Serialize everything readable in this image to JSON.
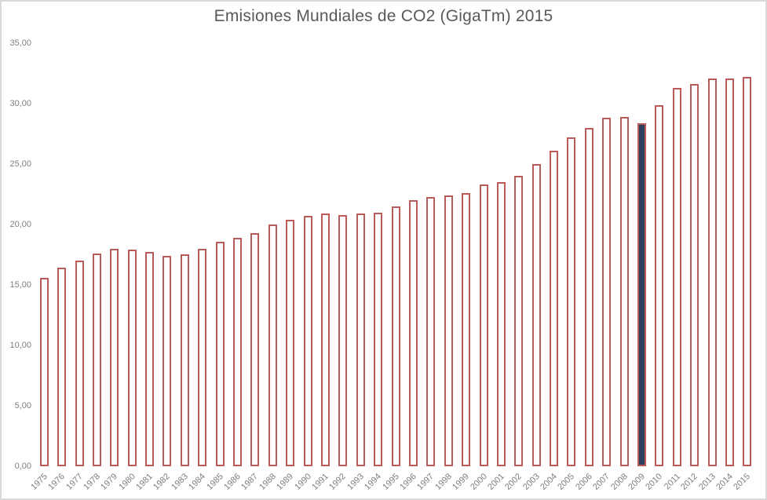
{
  "chart_data": {
    "type": "bar",
    "title": "Emisiones Mundiales de CO2 (GigaTm) 2015",
    "xlabel": "",
    "ylabel": "",
    "ylim": [
      0,
      35
    ],
    "grid": false,
    "legend": "none",
    "y_tick_labels": [
      "35,00",
      "30,00",
      "25,00",
      "20,00",
      "15,00",
      "10,00",
      "5,00",
      "0,00"
    ],
    "y_tick_values": [
      35,
      30,
      25,
      20,
      15,
      10,
      5,
      0
    ],
    "categories": [
      "1975",
      "1976",
      "1977",
      "1978",
      "1979",
      "1980",
      "1981",
      "1982",
      "1983",
      "1984",
      "1985",
      "1986",
      "1987",
      "1988",
      "1989",
      "1990",
      "1991",
      "1992",
      "1993",
      "1994",
      "1995",
      "1996",
      "1997",
      "1998",
      "1999",
      "2000",
      "2001",
      "2002",
      "2003",
      "2004",
      "2005",
      "2006",
      "2007",
      "2008",
      "2009",
      "2010",
      "2011",
      "2012",
      "2013",
      "2014",
      "2015"
    ],
    "values": [
      15.6,
      16.4,
      17.0,
      17.6,
      18.0,
      17.9,
      17.7,
      17.4,
      17.5,
      18.0,
      18.6,
      18.9,
      19.3,
      20.0,
      20.4,
      20.7,
      20.9,
      20.8,
      20.9,
      21.0,
      21.5,
      22.0,
      22.3,
      22.4,
      22.6,
      23.3,
      23.5,
      24.0,
      25.0,
      26.1,
      27.2,
      28.0,
      28.8,
      28.9,
      28.4,
      29.9,
      31.3,
      31.6,
      32.1,
      32.1,
      32.2
    ],
    "highlight": {
      "category": "2009",
      "fill_color": "#2D3E5E"
    },
    "bar_style": {
      "fill": "#FFFFFF",
      "border_color": "#B85A58",
      "border_width": 2
    },
    "colors": {
      "title_text": "#595959",
      "axis_text": "#7F7F7F",
      "chart_border": "#D9D9D9",
      "background": "#FFFFFF"
    }
  }
}
